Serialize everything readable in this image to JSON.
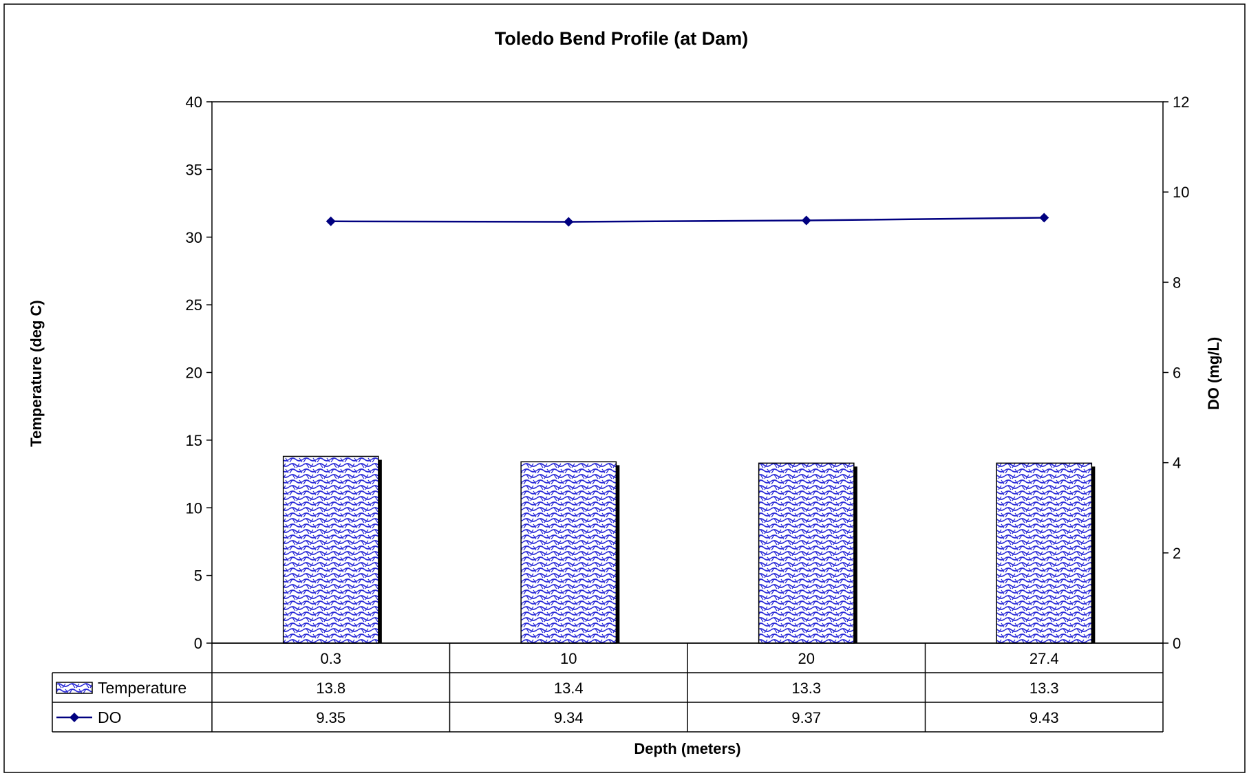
{
  "chart_data": {
    "type": "bar",
    "title": "Toledo Bend Profile (at Dam)",
    "xlabel": "Depth (meters)",
    "ylabel": "Temperature (deg C)",
    "y2label": "DO (mg/L)",
    "categories": [
      "0.3",
      "10",
      "20",
      "27.4"
    ],
    "ylim": [
      0,
      40
    ],
    "yticks": [
      0,
      5,
      10,
      15,
      20,
      25,
      30,
      35,
      40
    ],
    "y2lim": [
      0,
      12
    ],
    "y2ticks": [
      0,
      2,
      4,
      6,
      8,
      10,
      12
    ],
    "series": [
      {
        "name": "Temperature",
        "kind": "bar",
        "axis": "left",
        "color": "#1a1acc",
        "values": [
          13.8,
          13.4,
          13.3,
          13.3
        ]
      },
      {
        "name": "DO",
        "kind": "line",
        "axis": "right",
        "color": "#000080",
        "marker": "diamond",
        "values": [
          9.35,
          9.34,
          9.37,
          9.43
        ]
      }
    ],
    "data_table": true,
    "grid": false
  }
}
